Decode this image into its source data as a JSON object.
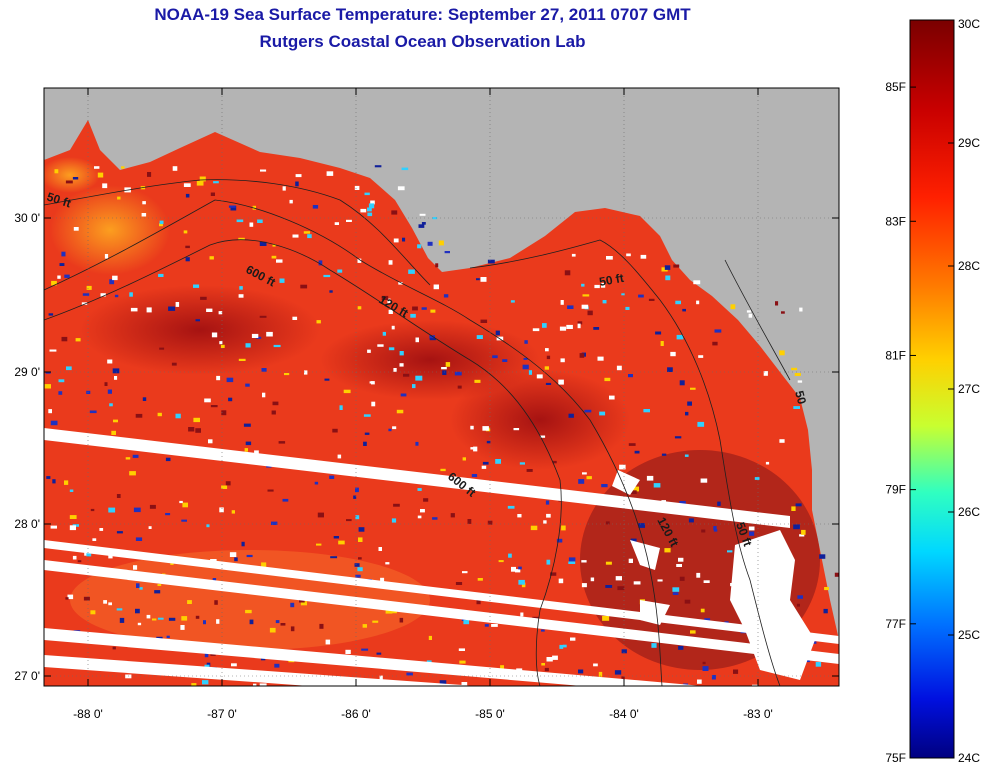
{
  "header": {
    "title_line1": "NOAA-19 Sea Surface Temperature:  September 27, 2011 0707 GMT",
    "title_line2": "Rutgers Coastal Ocean Observation Lab"
  },
  "map": {
    "lon_ticks": [
      "-88 0'",
      "-87 0'",
      "-86 0'",
      "-85 0'",
      "-84 0'",
      "-83 0'"
    ],
    "lat_ticks": [
      "30 0'",
      "29 0'",
      "28 0'",
      "27 0'"
    ],
    "contours": [
      {
        "label": "50 ft"
      },
      {
        "label": "600 ft"
      },
      {
        "label": "120 ft"
      },
      {
        "label": "50 ft"
      },
      {
        "label": "600 ft"
      },
      {
        "label": "120 ft"
      },
      {
        "label": "50 ft"
      },
      {
        "label": "50"
      }
    ],
    "colors": {
      "land": "#b4b4b4",
      "cloud_mask": "#ffffff",
      "warm": "#e8321a",
      "hot": "#a80f12",
      "cool": "#10209a"
    }
  },
  "colorbar": {
    "range_c": [
      24,
      30
    ],
    "range_f": [
      75,
      86
    ],
    "celsius_labels": [
      "30C",
      "29C",
      "28C",
      "27C",
      "26C",
      "25C",
      "24C"
    ],
    "fahrenheit_labels": [
      "85F",
      "83F",
      "81F",
      "79F",
      "77F",
      "75F"
    ]
  }
}
